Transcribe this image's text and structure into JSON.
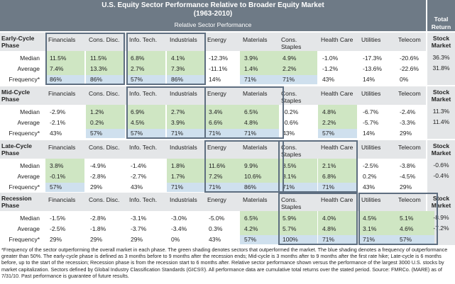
{
  "title": "U.S. Equity Sector Performance Relative to Broader Equity Market",
  "subtitle": "(1963-2010)",
  "relative_header": "Relative Sector Performance",
  "total_return_header": "Total Return",
  "stock_market_label": "Stock Market",
  "row_labels": [
    "Median",
    "Average",
    "Frequency*"
  ],
  "colors": {
    "header": "#6e7a86",
    "green": "#cfe6c3",
    "blue": "#cfe0ee",
    "band": "#e4e6e8",
    "box": "#5e6e80"
  },
  "phases": [
    {
      "name": "Early-Cycle Phase",
      "columns": [
        "Financials",
        "Cons. Disc.",
        "Info. Tech.",
        "Industrials",
        "Energy",
        "Materials",
        "Cons. Staples",
        "Health Care",
        "Utilities",
        "Telecom"
      ],
      "median": [
        "11.5%",
        "11.5%",
        "6.8%",
        "4.1%",
        "-12.3%",
        "3.9%",
        "4.9%",
        "-1.0%",
        "-17.3%",
        "-20.6%"
      ],
      "average": [
        "7.4%",
        "13.3%",
        "2.7%",
        "7.3%",
        "-11.1%",
        "1.4%",
        "2.2%",
        "-1.2%",
        "-13.6%",
        "-22.6%"
      ],
      "frequency": [
        "86%",
        "86%",
        "57%",
        "86%",
        "14%",
        "71%",
        "71%",
        "43%",
        "14%",
        "0%"
      ],
      "total_median": "36.3%",
      "total_average": "31.8%"
    },
    {
      "name": "Mid-Cycle Phase",
      "columns": [
        "Financials",
        "Cons. Disc.",
        "Info. Tech.",
        "Industrials",
        "Energy",
        "Materials",
        "Cons. Staples",
        "Health Care",
        "Utilities",
        "Telecom"
      ],
      "median": [
        "-2.9%",
        "1.2%",
        "6.9%",
        "2.7%",
        "3.4%",
        "6.5%",
        "-0.2%",
        "4.8%",
        "-6.7%",
        "-2.4%"
      ],
      "average": [
        "-2.1%",
        "0.2%",
        "4.5%",
        "3.9%",
        "6.6%",
        "4.8%",
        "-0.6%",
        "2.2%",
        "-5.7%",
        "-3.3%"
      ],
      "frequency": [
        "43%",
        "57%",
        "57%",
        "71%",
        "71%",
        "71%",
        "43%",
        "57%",
        "14%",
        "29%"
      ],
      "total_median": "11.3%",
      "total_average": "11.4%"
    },
    {
      "name": "Late-Cycle Phase",
      "columns": [
        "Financials",
        "Cons. Disc.",
        "Info. Tech.",
        "Industrials",
        "Energy",
        "Materials",
        "Cons. Staples",
        "Health Care",
        "Utilities",
        "Telecom"
      ],
      "median": [
        "3.8%",
        "-4.9%",
        "-1.4%",
        "1.8%",
        "11.6%",
        "9.9%",
        "8.5%",
        "2.1%",
        "-2.5%",
        "-3.8%"
      ],
      "average": [
        "-0.1%",
        "-2.8%",
        "-2.7%",
        "1.7%",
        "7.2%",
        "10.6%",
        "8.1%",
        "6.8%",
        "0.2%",
        "-4.5%"
      ],
      "frequency": [
        "57%",
        "29%",
        "43%",
        "71%",
        "71%",
        "86%",
        "71%",
        "71%",
        "43%",
        "29%"
      ],
      "total_median": "-0.6%",
      "total_average": "-0.4%"
    },
    {
      "name": "Recession Phase",
      "columns": [
        "Financials",
        "Cons. Disc.",
        "Info. Tech.",
        "Industrials",
        "Energy",
        "Materials",
        "Cons. Staples",
        "Health Care",
        "Utilities",
        "Telecom"
      ],
      "median": [
        "-1.5%",
        "-2.8%",
        "-3.1%",
        "-3.0%",
        "-5.0%",
        "6.5%",
        "5.9%",
        "4.0%",
        "4.5%",
        "5.1%"
      ],
      "average": [
        "-2.5%",
        "-1.8%",
        "-3.7%",
        "-3.4%",
        "0.3%",
        "4.2%",
        "5.7%",
        "4.8%",
        "3.1%",
        "4.6%"
      ],
      "frequency": [
        "29%",
        "29%",
        "29%",
        "0%",
        "43%",
        "57%",
        "100%",
        "71%",
        "71%",
        "57%"
      ],
      "total_median": "-8.9%",
      "total_average": "-7.2%"
    }
  ],
  "footnote": "*Frequency of the sector outperforming the overall market in each phase. The green shading denotes sectors that outperformed the market. The blue shading denotes a frequency of outperformance greater than 50%. The early-cycle phase is defined as 3 months before to 9 months after the recession ends; Mid-cycle is 3 months after to 9 months after the first rate hike; Late-cycle is 6 months before, up to the start of the recession; Recession phase is from the recession start to 6 months after. Relative sector performance shown versus the performance of the largest 3000 U.S. stocks by market capitalization. Sectors defined by Global Industry Classification Standards (GICS®). All performance data are cumulative total returns over the stated period. Source: FMRCo. (MARE) as of 7/31/10. Past performance is guarantee of future results."
}
